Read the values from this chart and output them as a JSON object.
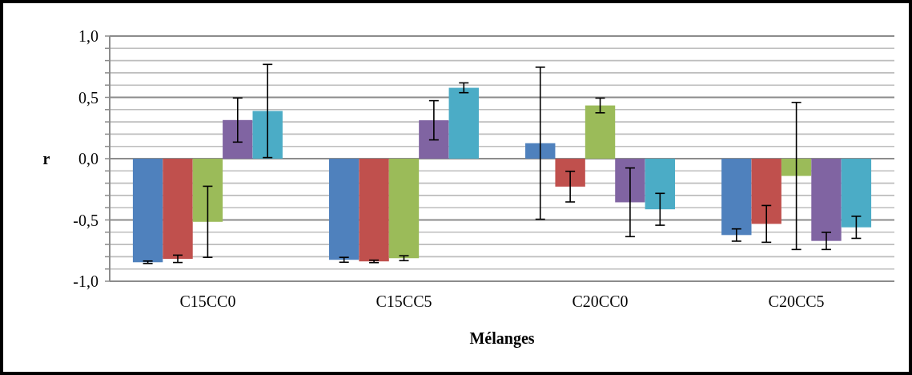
{
  "chart_data": {
    "type": "bar",
    "xlabel": "Mélanges",
    "ylabel": "r",
    "categories": [
      "C15CC0",
      "C15CC5",
      "C20CC0",
      "C20CC5"
    ],
    "series": [
      {
        "color": "#4f81bd",
        "values": [
          -0.845,
          -0.825,
          0.126,
          -0.623
        ],
        "errors": [
          0.01,
          0.02,
          0.62,
          0.05
        ]
      },
      {
        "color": "#c0504d",
        "values": [
          -0.817,
          -0.838,
          -0.228,
          -0.532
        ],
        "errors": [
          0.03,
          0.01,
          0.125,
          0.15
        ]
      },
      {
        "color": "#9bbb59",
        "values": [
          -0.515,
          -0.812,
          0.434,
          -0.141
        ],
        "errors": [
          0.29,
          0.02,
          0.06,
          0.6
        ]
      },
      {
        "color": "#8064a2",
        "values": [
          0.315,
          0.313,
          -0.356,
          -0.671
        ],
        "errors": [
          0.18,
          0.16,
          0.28,
          0.07
        ]
      },
      {
        "color": "#4bacc6",
        "values": [
          0.389,
          0.578,
          -0.413,
          -0.56
        ],
        "errors": [
          0.38,
          0.04,
          0.13,
          0.09
        ]
      }
    ],
    "ylim": [
      -1,
      1
    ],
    "yticks": [
      {
        "value": -1,
        "label": "-1,0"
      },
      {
        "value": -0.9,
        "label": null
      },
      {
        "value": -0.8,
        "label": null
      },
      {
        "value": -0.7,
        "label": null
      },
      {
        "value": -0.6,
        "label": null
      },
      {
        "value": -0.5,
        "label": "-0,5"
      },
      {
        "value": -0.4,
        "label": null
      },
      {
        "value": -0.3,
        "label": null
      },
      {
        "value": -0.2,
        "label": null
      },
      {
        "value": -0.1,
        "label": null
      },
      {
        "value": 0,
        "label": "0,0"
      },
      {
        "value": 0.1,
        "label": null
      },
      {
        "value": 0.2,
        "label": null
      },
      {
        "value": 0.3,
        "label": null
      },
      {
        "value": 0.4,
        "label": null
      },
      {
        "value": 0.5,
        "label": "0,5"
      },
      {
        "value": 0.6,
        "label": null
      },
      {
        "value": 0.7,
        "label": null
      },
      {
        "value": 0.8,
        "label": null
      },
      {
        "value": 0.9,
        "label": null
      },
      {
        "value": 1,
        "label": "1,0"
      }
    ],
    "grid": true
  }
}
